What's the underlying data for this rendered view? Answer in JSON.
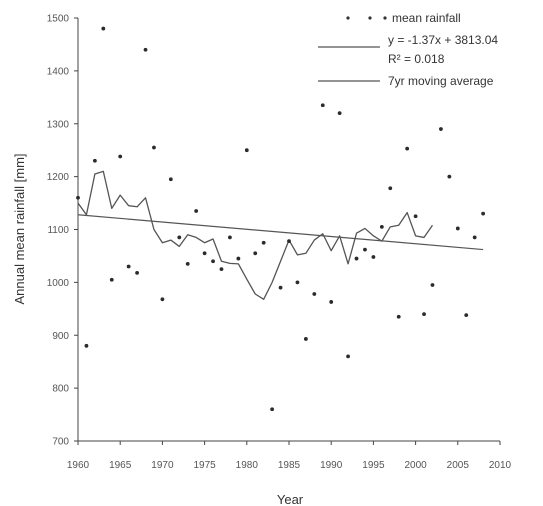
{
  "chart_data": {
    "type": "scatter",
    "xlabel": "Year",
    "ylabel": "Annual mean rainfall [mm]",
    "xlim": [
      1960,
      2010
    ],
    "ylim": [
      700,
      1500
    ],
    "xticks": [
      1960,
      1965,
      1970,
      1975,
      1980,
      1985,
      1990,
      1995,
      2000,
      2005,
      2010
    ],
    "yticks": [
      700,
      800,
      900,
      1000,
      1100,
      1200,
      1300,
      1400,
      1500
    ],
    "legend": {
      "placement": "top-right",
      "entries": [
        {
          "key": "scatter",
          "label": "mean rainfall"
        },
        {
          "key": "trend",
          "label": "y = -1.37x + 3813.04",
          "label2": "R² = 0.018"
        },
        {
          "key": "moving",
          "label": "7yr moving average"
        }
      ]
    },
    "series": [
      {
        "key": "scatter",
        "x": [
          1960,
          1961,
          1962,
          1963,
          1964,
          1965,
          1966,
          1967,
          1968,
          1969,
          1970,
          1971,
          1972,
          1973,
          1974,
          1975,
          1976,
          1977,
          1978,
          1979,
          1980,
          1981,
          1982,
          1983,
          1984,
          1985,
          1986,
          1987,
          1988,
          1989,
          1990,
          1991,
          1992,
          1993,
          1994,
          1995,
          1996,
          1997,
          1998,
          1999,
          2000,
          2001,
          2002,
          2003,
          2004,
          2005,
          2006,
          2007,
          2008
        ],
        "y": [
          1160,
          880,
          1230,
          1480,
          1005,
          1238,
          1030,
          1018,
          1440,
          1255,
          968,
          1195,
          1085,
          1035,
          1135,
          1055,
          1040,
          1025,
          1085,
          1045,
          1250,
          1055,
          1075,
          760,
          990,
          1078,
          1000,
          893,
          978,
          1335,
          963,
          1320,
          860,
          1045,
          1062,
          1048,
          1105,
          1178,
          935,
          1253,
          1125,
          940,
          995,
          1290,
          1200,
          1102,
          938,
          1085,
          1130
        ]
      },
      {
        "key": "moving",
        "x": [
          1960,
          1961,
          1962,
          1963,
          1964,
          1965,
          1966,
          1967,
          1968,
          1969,
          1970,
          1971,
          1972,
          1973,
          1974,
          1975,
          1976,
          1977,
          1978,
          1979,
          1980,
          1981,
          1982,
          1983,
          1984,
          1985,
          1986,
          1987,
          1988,
          1989,
          1990,
          1991,
          1992,
          1993,
          1994,
          1995,
          1996,
          1997,
          1998,
          1999,
          2000,
          2001,
          2002
        ],
        "y": [
          1150,
          1128,
          1205,
          1210,
          1140,
          1165,
          1145,
          1143,
          1160,
          1100,
          1075,
          1080,
          1068,
          1090,
          1085,
          1075,
          1082,
          1040,
          1036,
          1035,
          1006,
          978,
          968,
          1000,
          1040,
          1080,
          1052,
          1055,
          1080,
          1092,
          1060,
          1088,
          1035,
          1093,
          1102,
          1088,
          1078,
          1105,
          1108,
          1132,
          1088,
          1085,
          1108
        ]
      },
      {
        "key": "trend",
        "x": [
          1960,
          2008
        ],
        "y": [
          1127.84,
          1062.08
        ]
      }
    ]
  }
}
